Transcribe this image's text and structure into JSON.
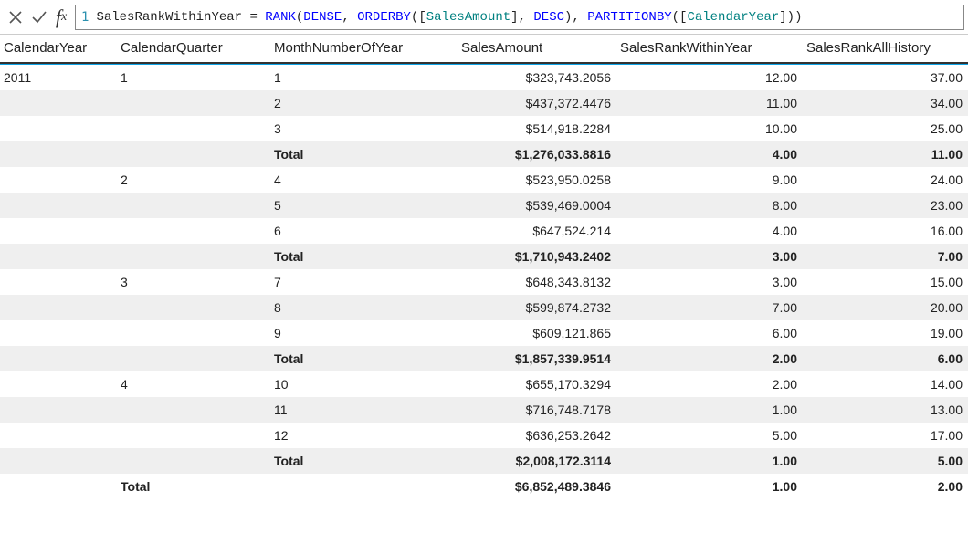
{
  "formula": {
    "lineNumber": "1",
    "tokens": [
      {
        "t": "SalesRankWithinYear = ",
        "c": "tok-plain"
      },
      {
        "t": "RANK",
        "c": "tok-func"
      },
      {
        "t": "(",
        "c": "tok-plain"
      },
      {
        "t": "DENSE",
        "c": "tok-kw"
      },
      {
        "t": ", ",
        "c": "tok-plain"
      },
      {
        "t": "ORDERBY",
        "c": "tok-func"
      },
      {
        "t": "([",
        "c": "tok-plain"
      },
      {
        "t": "SalesAmount",
        "c": "tok-col"
      },
      {
        "t": "], ",
        "c": "tok-plain"
      },
      {
        "t": "DESC",
        "c": "tok-kw"
      },
      {
        "t": "), ",
        "c": "tok-plain"
      },
      {
        "t": "PARTITIONBY",
        "c": "tok-func"
      },
      {
        "t": "([",
        "c": "tok-plain"
      },
      {
        "t": "CalendarYear",
        "c": "tok-col"
      },
      {
        "t": "]))",
        "c": "tok-plain"
      }
    ]
  },
  "columns": {
    "year": "CalendarYear",
    "quarter": "CalendarQuarter",
    "month": "MonthNumberOfYear",
    "sales": "SalesAmount",
    "rankYear": "SalesRankWithinYear",
    "rankAll": "SalesRankAllHistory"
  },
  "labels": {
    "total": "Total"
  },
  "rows": [
    {
      "year": "2011",
      "quarter": "1",
      "month": "1",
      "sales": "$323,743.2056",
      "ry": "12.00",
      "ra": "37.00",
      "alt": false,
      "bold": false
    },
    {
      "year": "",
      "quarter": "",
      "month": "2",
      "sales": "$437,372.4476",
      "ry": "11.00",
      "ra": "34.00",
      "alt": true,
      "bold": false
    },
    {
      "year": "",
      "quarter": "",
      "month": "3",
      "sales": "$514,918.2284",
      "ry": "10.00",
      "ra": "25.00",
      "alt": false,
      "bold": false
    },
    {
      "year": "",
      "quarter": "",
      "month": "Total",
      "sales": "$1,276,033.8816",
      "ry": "4.00",
      "ra": "11.00",
      "alt": true,
      "bold": true
    },
    {
      "year": "",
      "quarter": "2",
      "month": "4",
      "sales": "$523,950.0258",
      "ry": "9.00",
      "ra": "24.00",
      "alt": false,
      "bold": false
    },
    {
      "year": "",
      "quarter": "",
      "month": "5",
      "sales": "$539,469.0004",
      "ry": "8.00",
      "ra": "23.00",
      "alt": true,
      "bold": false
    },
    {
      "year": "",
      "quarter": "",
      "month": "6",
      "sales": "$647,524.214",
      "ry": "4.00",
      "ra": "16.00",
      "alt": false,
      "bold": false
    },
    {
      "year": "",
      "quarter": "",
      "month": "Total",
      "sales": "$1,710,943.2402",
      "ry": "3.00",
      "ra": "7.00",
      "alt": true,
      "bold": true
    },
    {
      "year": "",
      "quarter": "3",
      "month": "7",
      "sales": "$648,343.8132",
      "ry": "3.00",
      "ra": "15.00",
      "alt": false,
      "bold": false
    },
    {
      "year": "",
      "quarter": "",
      "month": "8",
      "sales": "$599,874.2732",
      "ry": "7.00",
      "ra": "20.00",
      "alt": true,
      "bold": false
    },
    {
      "year": "",
      "quarter": "",
      "month": "9",
      "sales": "$609,121.865",
      "ry": "6.00",
      "ra": "19.00",
      "alt": false,
      "bold": false
    },
    {
      "year": "",
      "quarter": "",
      "month": "Total",
      "sales": "$1,857,339.9514",
      "ry": "2.00",
      "ra": "6.00",
      "alt": true,
      "bold": true
    },
    {
      "year": "",
      "quarter": "4",
      "month": "10",
      "sales": "$655,170.3294",
      "ry": "2.00",
      "ra": "14.00",
      "alt": false,
      "bold": false
    },
    {
      "year": "",
      "quarter": "",
      "month": "11",
      "sales": "$716,748.7178",
      "ry": "1.00",
      "ra": "13.00",
      "alt": true,
      "bold": false
    },
    {
      "year": "",
      "quarter": "",
      "month": "12",
      "sales": "$636,253.2642",
      "ry": "5.00",
      "ra": "17.00",
      "alt": false,
      "bold": false
    },
    {
      "year": "",
      "quarter": "",
      "month": "Total",
      "sales": "$2,008,172.3114",
      "ry": "1.00",
      "ra": "5.00",
      "alt": true,
      "bold": true
    },
    {
      "year": "",
      "quarter": "Total",
      "month": "",
      "sales": "$6,852,489.3846",
      "ry": "1.00",
      "ra": "2.00",
      "alt": false,
      "bold": true
    }
  ]
}
